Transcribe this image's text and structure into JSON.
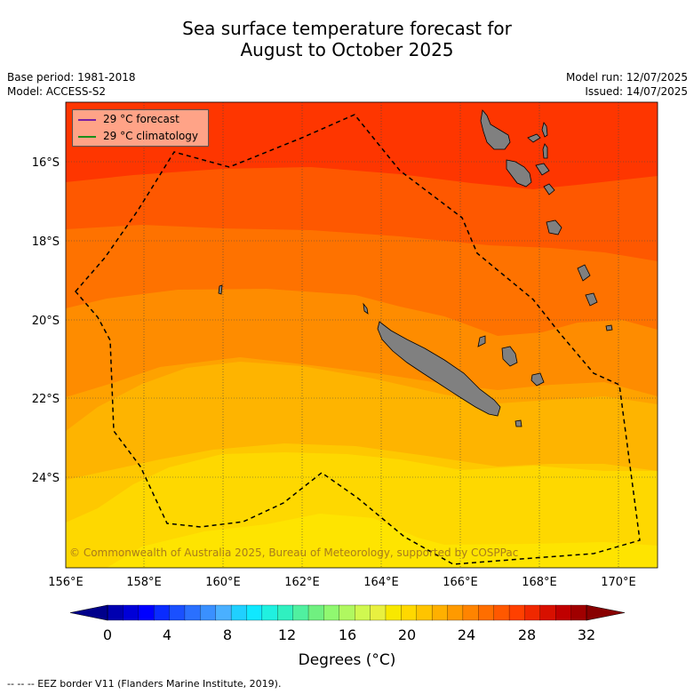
{
  "title": {
    "line1": "Sea surface temperature forecast for",
    "line2": "August to October 2025"
  },
  "meta": {
    "base_period": "Base period: 1981-2018",
    "model": "Model: ACCESS-S2",
    "model_run": "Model run: 12/07/2025",
    "issued": "Issued: 14/07/2025"
  },
  "legend": {
    "forecast_label": "29 °C  forecast",
    "forecast_color": "#7b1fa2",
    "climatology_label": "29 °C  climatology",
    "climatology_color": "#1a8f1a"
  },
  "copyright": "© Commonwealth of Australia 2025, Bureau of Meteorology, supported by COSPPac",
  "map": {
    "lon_labels": [
      "156°E",
      "158°E",
      "160°E",
      "162°E",
      "164°E",
      "166°E",
      "168°E",
      "170°E"
    ],
    "lat_labels": [
      "16°S",
      "18°S",
      "20°S",
      "22°S",
      "24°S"
    ],
    "land_color": "#808080"
  },
  "colorbar": {
    "ticks": [
      "0",
      "4",
      "8",
      "12",
      "16",
      "20",
      "24",
      "28",
      "32"
    ],
    "title": "Degrees (°C)",
    "colors": [
      "#00008b",
      "#0000b0",
      "#0000d8",
      "#0000ff",
      "#0a2bff",
      "#1a50ff",
      "#2a70ff",
      "#3a90ff",
      "#4ab0ff",
      "#20d0ff",
      "#10e8ff",
      "#20f0e0",
      "#30f0c0",
      "#50f0a0",
      "#70f080",
      "#90f870",
      "#b0f860",
      "#d0f850",
      "#e8f040",
      "#f8e800",
      "#ffd800",
      "#ffc400",
      "#ffb000",
      "#ff9a00",
      "#ff8400",
      "#ff6e00",
      "#ff5800",
      "#ff4000",
      "#f02800",
      "#d81000",
      "#c00000",
      "#a00000",
      "#880000"
    ]
  },
  "sst_band_colors": [
    "#fe3600",
    "#fe5800",
    "#fe7200",
    "#fe8c00",
    "#fea200",
    "#feb400",
    "#fec800",
    "#fed800",
    "#fee400"
  ],
  "footnote": "--  --  -- EEZ border V11 (Flanders Marine Institute, 2019)."
}
